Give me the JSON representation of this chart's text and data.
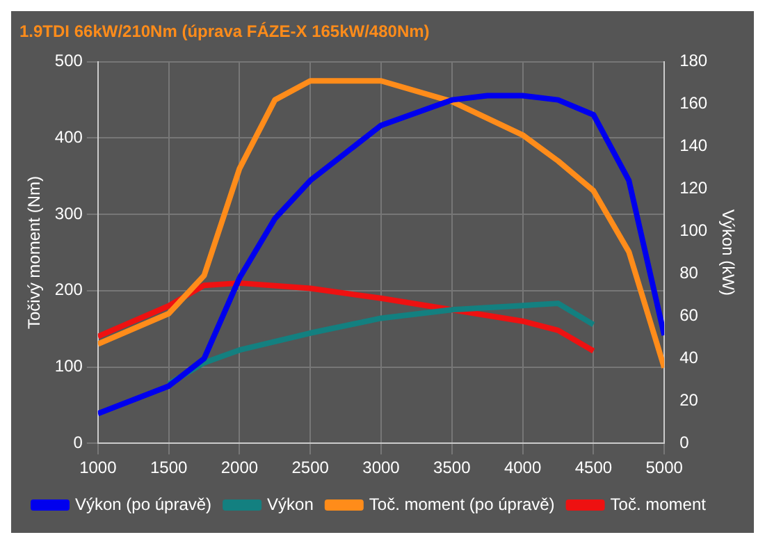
{
  "chart_data": {
    "type": "line",
    "title": "1.9TDI 66kW/210Nm (úprava FÁZE-X 165kW/480Nm)",
    "ylabel": "Točivý moment (Nm)",
    "y2label": "Výkon (kW)",
    "xlim": [
      1000,
      5000
    ],
    "xticks": [
      1000,
      1500,
      2000,
      2500,
      3000,
      3500,
      4000,
      4500,
      5000
    ],
    "ylim": [
      0,
      500
    ],
    "yticks": [
      0,
      100,
      200,
      300,
      400,
      500
    ],
    "y2lim": [
      0,
      180
    ],
    "y2ticks": [
      0,
      20,
      40,
      60,
      80,
      100,
      120,
      140,
      160,
      180
    ],
    "grid": true,
    "legend": "bottom",
    "marker": "none",
    "line_style": "solid",
    "series": [
      {
        "name": "Výkon (po úpravě)",
        "color": "#0000ee",
        "axis": "y2",
        "x": [
          1000,
          1500,
          1750,
          2000,
          2250,
          2500,
          3000,
          3500,
          3750,
          4000,
          4250,
          4500,
          4750,
          5000
        ],
        "values": [
          14,
          27,
          40,
          78,
          106,
          124,
          150,
          162,
          164,
          164,
          162,
          155,
          124,
          51
        ]
      },
      {
        "name": "Výkon",
        "color": "#138080",
        "axis": "y2",
        "x": [
          1500,
          1750,
          2000,
          2500,
          3000,
          3500,
          4000,
          4250,
          4500
        ],
        "values": [
          28,
          38,
          44,
          52,
          59,
          63,
          65,
          66,
          56
        ]
      },
      {
        "name": "Toč. moment (po úpravě)",
        "color": "#ff8c1a",
        "x": [
          1000,
          1500,
          1750,
          2000,
          2250,
          2500,
          3000,
          3500,
          4000,
          4250,
          4500,
          4750,
          5000
        ],
        "values": [
          130,
          170,
          220,
          360,
          450,
          475,
          475,
          448,
          404,
          370,
          331,
          251,
          99
        ]
      },
      {
        "name": "Toč. moment",
        "color": "#ee1111",
        "x": [
          1000,
          1500,
          1750,
          2000,
          2500,
          3000,
          3500,
          4000,
          4250,
          4500
        ],
        "values": [
          140,
          180,
          207,
          210,
          203,
          190,
          175,
          160,
          148,
          121
        ]
      }
    ]
  }
}
